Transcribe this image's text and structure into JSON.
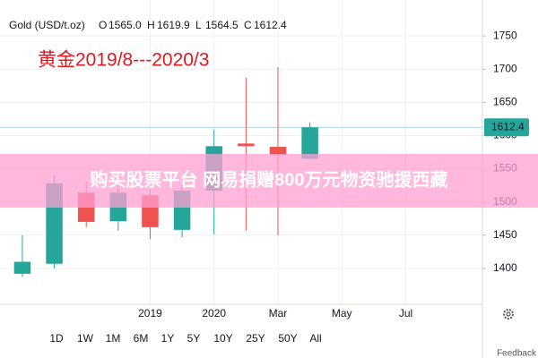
{
  "chart_data": {
    "type": "candlestick",
    "title": "Gold (USD/t.oz)",
    "ohlc_labels": [
      {
        "key": "O",
        "value": "1565.0"
      },
      {
        "key": "H",
        "value": "1619.9"
      },
      {
        "key": "L",
        "value": "1564.5"
      },
      {
        "key": "C",
        "value": "1612.4"
      }
    ],
    "annotation": "黄金2019/8---2020/3",
    "x": [
      0,
      1,
      2,
      3,
      4,
      5,
      6,
      7,
      8,
      9
    ],
    "xlim": [
      -0.7,
      14.4
    ],
    "xticks": [
      {
        "value": 4,
        "label": "2019"
      },
      {
        "value": 6,
        "label": "2020"
      },
      {
        "value": 8,
        "label": "Mar"
      },
      {
        "value": 10,
        "label": "May"
      },
      {
        "value": 12,
        "label": "Jul"
      }
    ],
    "series": [
      {
        "open": [
          1392,
          1407,
          1514,
          1471,
          1510,
          1458,
          1517,
          1588,
          1583,
          1565.0
        ],
        "high": [
          1450,
          1540,
          1530,
          1525,
          1520,
          1525,
          1609,
          1687,
          1703,
          1619.9
        ],
        "low": [
          1387,
          1400,
          1462,
          1457,
          1444,
          1447,
          1451,
          1457,
          1450,
          1564.5
        ],
        "close": [
          1410,
          1528,
          1470,
          1514,
          1462,
          1517,
          1584,
          1584,
          1571,
          1612.4
        ]
      }
    ],
    "up_color": "#26a69a",
    "down_color": "#ef5350",
    "ylim": [
      1346,
      1804
    ],
    "yticks": [
      1400,
      1450,
      1500,
      1550,
      1600,
      1650,
      1700,
      1750
    ],
    "last_price": {
      "value": 1612.4,
      "label": "1612.4"
    },
    "grid": true
  },
  "watermark": "购买股票平台 网易捐赠800万元物资驰援西藏",
  "range_buttons": [
    "1D",
    "1W",
    "1M",
    "6M",
    "1Y",
    "5Y",
    "10Y",
    "25Y",
    "50Y",
    "All"
  ],
  "feedback": "Feedback"
}
